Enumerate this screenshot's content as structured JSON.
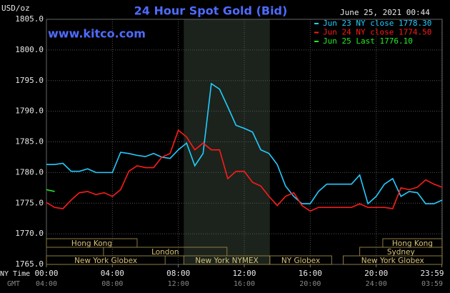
{
  "chart_data": {
    "type": "line",
    "title": "24 Hour Spot Gold (Bid)",
    "y_unit": "USD/oz",
    "timestamp": "June 25, 2021 00:44",
    "watermark": "www.kitco.com",
    "x_row_label": "NY Time",
    "x2_row_label": "GMT",
    "background": "#000000",
    "grid": true,
    "xlim": [
      0,
      24
    ],
    "ylim": [
      1765,
      1805
    ],
    "yticks": [
      {
        "value": 1765,
        "label": "1765.0"
      },
      {
        "value": 1770,
        "label": "1770.0"
      },
      {
        "value": 1775,
        "label": "1775.0"
      },
      {
        "value": 1780,
        "label": "1780.0"
      },
      {
        "value": 1785,
        "label": "1785.0"
      },
      {
        "value": 1790,
        "label": "1790.0"
      },
      {
        "value": 1795,
        "label": "1795.0"
      },
      {
        "value": 1800,
        "label": "1800.0"
      },
      {
        "value": 1805,
        "label": "1805.0"
      }
    ],
    "xticks": [
      {
        "value": 0,
        "label": "00:00"
      },
      {
        "value": 4,
        "label": "04:00"
      },
      {
        "value": 8,
        "label": "08:00"
      },
      {
        "value": 12,
        "label": "12:00"
      },
      {
        "value": 16,
        "label": "16:00"
      },
      {
        "value": 20,
        "label": "20:00"
      },
      {
        "value": 23.98,
        "label": "23:59"
      }
    ],
    "x2ticks": [
      {
        "value": 0,
        "label": "04:00"
      },
      {
        "value": 4,
        "label": "08:00"
      },
      {
        "value": 8,
        "label": "12:00"
      },
      {
        "value": 12,
        "label": "16:00"
      },
      {
        "value": 16,
        "label": "20:00"
      },
      {
        "value": 20,
        "label": "24:00"
      },
      {
        "value": 23.98,
        "label": "03:59"
      }
    ],
    "shaded_range": [
      8.33,
      13.55
    ],
    "x": [
      0,
      0.5,
      1,
      1.5,
      2,
      2.5,
      3,
      3.5,
      4,
      4.5,
      5,
      5.5,
      6,
      6.5,
      7,
      7.5,
      8,
      8.5,
      9,
      9.5,
      10,
      10.5,
      11,
      11.5,
      12,
      12.5,
      13,
      13.5,
      14,
      14.5,
      15,
      15.5,
      16,
      16.5,
      17,
      17.5,
      18,
      18.5,
      19,
      19.5,
      20,
      20.5,
      21,
      21.5,
      22,
      22.5,
      23,
      23.5,
      24
    ],
    "series": [
      {
        "name": "Jun 23 NY close 1778.30",
        "color": "#22ccff",
        "values": [
          1781.3,
          1781.3,
          1781.5,
          1780.2,
          1780.2,
          1780.6,
          1780.0,
          1780.0,
          1780.0,
          1783.3,
          1783.1,
          1782.8,
          1782.6,
          1783.1,
          1782.5,
          1782.3,
          1783.7,
          1784.8,
          1781.1,
          1783.1,
          1794.5,
          1793.6,
          1790.7,
          1787.7,
          1787.2,
          1786.6,
          1783.7,
          1783.1,
          1781.3,
          1777.8,
          1776.1,
          1774.9,
          1774.9,
          1776.9,
          1778.1,
          1778.1,
          1778.1,
          1778.1,
          1779.6,
          1774.9,
          1776.1,
          1778.1,
          1779.0,
          1776.1,
          1776.9,
          1776.7,
          1774.9,
          1774.9,
          1775.5
        ]
      },
      {
        "name": "Jun 24 NY close 1774.50",
        "color": "#ff1a1a",
        "values": [
          1775.1,
          1774.3,
          1774.1,
          1775.5,
          1776.7,
          1776.9,
          1776.4,
          1776.7,
          1776.1,
          1777.2,
          1780.2,
          1781.1,
          1780.8,
          1780.8,
          1782.5,
          1783.1,
          1786.9,
          1785.8,
          1783.7,
          1784.8,
          1783.7,
          1783.7,
          1779.0,
          1780.2,
          1780.2,
          1778.4,
          1777.8,
          1776.1,
          1774.6,
          1776.1,
          1776.7,
          1774.6,
          1773.7,
          1774.3,
          1774.3,
          1774.3,
          1774.3,
          1774.3,
          1774.9,
          1774.3,
          1774.3,
          1774.3,
          1774.1,
          1777.5,
          1777.2,
          1777.6,
          1778.8,
          1778.1,
          1777.6
        ]
      },
      {
        "name": "Jun 25 Last 1776.10",
        "color": "#22ee22",
        "values": [
          1777.2,
          1776.9,
          null,
          null,
          null,
          null,
          null,
          null,
          null,
          null,
          null,
          null,
          null,
          null,
          null,
          null,
          null,
          null,
          null,
          null,
          null,
          null,
          null,
          null,
          null,
          null,
          null,
          null,
          null,
          null,
          null,
          null,
          null,
          null,
          null,
          null,
          null,
          null,
          null,
          null,
          null,
          null,
          null,
          null,
          null,
          null,
          null,
          null,
          null
        ]
      }
    ],
    "sessions": [
      [
        {
          "label": "Hong Kong",
          "start": 0,
          "end": 5.5
        },
        {
          "label": "Hong Kong",
          "start": 20.4,
          "end": 24
        }
      ],
      [
        {
          "label": "London",
          "start": 3.46,
          "end": 10.95
        },
        {
          "label": "Sydney",
          "start": 19,
          "end": 24
        }
      ],
      [
        {
          "label": "New York Globex",
          "start": 0,
          "end": 7.2
        },
        {
          "label": "New York NYMEX",
          "start": 8.33,
          "end": 13.55
        },
        {
          "label": "NY Globex",
          "start": 13.55,
          "end": 17.3
        },
        {
          "label": "New York Globex",
          "start": 18,
          "end": 24
        }
      ]
    ]
  }
}
